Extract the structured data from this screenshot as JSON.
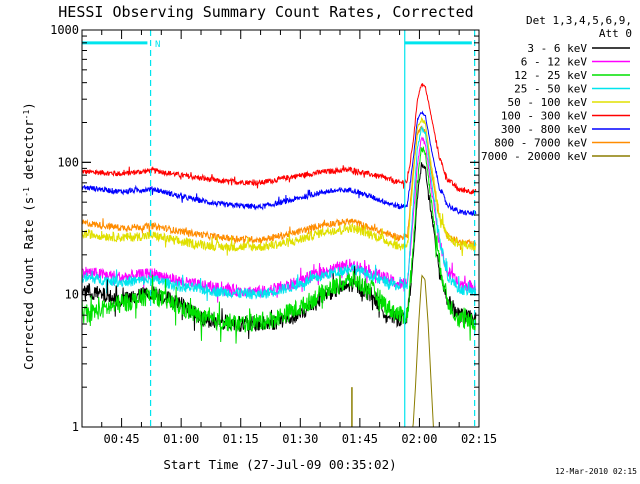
{
  "chart_data": {
    "type": "line",
    "title": "HESSI Observing Summary Count Rates, Corrected",
    "xlabel": "Start Time (27-Jul-09 00:35:02)",
    "ylabel": "Corrected Count Rate (s-1 detector-1)",
    "ylabel_parts": {
      "prefix": "Corrected Count Rate (s",
      "exp1": "-1",
      "mid": " detector",
      "exp2": "-1",
      "suffix": ")"
    },
    "y_scale": "log",
    "ylim": [
      1,
      1000
    ],
    "xlim_minutes": [
      35.03,
      135
    ],
    "x_ticks": [
      {
        "t": 45,
        "label": "00:45"
      },
      {
        "t": 60,
        "label": "01:00"
      },
      {
        "t": 75,
        "label": "01:15"
      },
      {
        "t": 90,
        "label": "01:30"
      },
      {
        "t": 105,
        "label": "01:45"
      },
      {
        "t": 120,
        "label": "02:00"
      },
      {
        "t": 135,
        "label": "02:15"
      }
    ],
    "y_ticks": [
      {
        "v": 1,
        "label": "1"
      },
      {
        "v": 10,
        "label": "10"
      },
      {
        "v": 100,
        "label": "100"
      },
      {
        "v": 1000,
        "label": "1000"
      }
    ],
    "legend_header": [
      "Det 1,3,4,5,6,9,",
      "Att 0"
    ],
    "legend_position": "right",
    "footer_date": "12-Mar-2010 02:15",
    "markers": {
      "color": "#00e5ee",
      "solid_vlines_min": [
        116.3
      ],
      "dashed_vlines_min": [
        52.3,
        133.9
      ],
      "bars": [
        {
          "x0_min": 35.03,
          "x1_min": 51.5,
          "y_value": 800
        },
        {
          "x0_min": 116.3,
          "x1_min": 133.2,
          "y_value": 800
        }
      ],
      "label": "N",
      "label_min": 53.4,
      "label_value": 800
    },
    "series": [
      {
        "name": "3 - 6 keV",
        "color": "#000000",
        "noise": 0.06,
        "trace_order": 8,
        "values": [
          [
            35,
            11
          ],
          [
            45,
            9
          ],
          [
            53,
            10.5
          ],
          [
            60,
            8.5
          ],
          [
            66,
            6.5
          ],
          [
            75,
            6
          ],
          [
            82,
            6
          ],
          [
            90,
            7
          ],
          [
            96,
            10
          ],
          [
            103,
            12
          ],
          [
            108,
            10
          ],
          [
            112,
            7
          ],
          [
            115,
            6.5
          ],
          [
            117,
            7
          ],
          [
            118.5,
            20
          ],
          [
            119.5,
            55
          ],
          [
            120.5,
            95
          ],
          [
            121.5,
            90
          ],
          [
            123,
            40
          ],
          [
            125,
            16
          ],
          [
            127,
            9
          ],
          [
            130,
            7
          ],
          [
            134,
            6.5
          ]
        ]
      },
      {
        "name": "6 - 12 keV",
        "color": "#ff00ff",
        "noise": 0.045,
        "trace_order": 5,
        "values": [
          [
            35,
            15
          ],
          [
            45,
            13.5
          ],
          [
            53,
            14.5
          ],
          [
            60,
            12.5
          ],
          [
            70,
            11
          ],
          [
            80,
            10.5
          ],
          [
            88,
            12
          ],
          [
            96,
            15
          ],
          [
            103,
            17
          ],
          [
            110,
            14
          ],
          [
            115,
            12
          ],
          [
            117,
            12.5
          ],
          [
            118.5,
            40
          ],
          [
            119.5,
            100
          ],
          [
            120.5,
            150
          ],
          [
            121.5,
            140
          ],
          [
            123,
            65
          ],
          [
            125,
            25
          ],
          [
            127,
            15
          ],
          [
            130,
            12
          ],
          [
            134,
            11.5
          ]
        ]
      },
      {
        "name": "12 - 25 keV",
        "color": "#00e000",
        "noise": 0.07,
        "trace_order": 9,
        "values": [
          [
            35,
            7
          ],
          [
            45,
            8.5
          ],
          [
            53,
            10
          ],
          [
            60,
            8
          ],
          [
            66,
            6.5
          ],
          [
            75,
            6
          ],
          [
            83,
            6.5
          ],
          [
            90,
            8
          ],
          [
            97,
            11
          ],
          [
            103,
            13
          ],
          [
            108,
            11
          ],
          [
            112,
            8
          ],
          [
            115,
            7
          ],
          [
            117,
            7
          ],
          [
            118.5,
            25
          ],
          [
            119.5,
            70
          ],
          [
            120.5,
            130
          ],
          [
            121.5,
            120
          ],
          [
            123,
            50
          ],
          [
            125,
            18
          ],
          [
            127,
            9
          ],
          [
            130,
            6.5
          ],
          [
            134,
            6
          ]
        ]
      },
      {
        "name": "25 - 50 keV",
        "color": "#00e5ee",
        "noise": 0.04,
        "trace_order": 6,
        "values": [
          [
            35,
            13.5
          ],
          [
            45,
            12.5
          ],
          [
            53,
            13
          ],
          [
            60,
            11.5
          ],
          [
            70,
            10.5
          ],
          [
            80,
            10
          ],
          [
            88,
            11.5
          ],
          [
            96,
            14
          ],
          [
            103,
            16
          ],
          [
            110,
            13
          ],
          [
            115,
            11.5
          ],
          [
            117,
            12
          ],
          [
            118.5,
            50
          ],
          [
            119.5,
            130
          ],
          [
            120.5,
            180
          ],
          [
            121.5,
            170
          ],
          [
            123,
            75
          ],
          [
            125,
            27
          ],
          [
            127,
            14
          ],
          [
            130,
            11
          ],
          [
            134,
            10.5
          ]
        ]
      },
      {
        "name": "50 - 100 keV",
        "color": "#e0e000",
        "noise": 0.035,
        "trace_order": 4,
        "values": [
          [
            35,
            29
          ],
          [
            45,
            27
          ],
          [
            53,
            28
          ],
          [
            60,
            25
          ],
          [
            70,
            23
          ],
          [
            80,
            23
          ],
          [
            88,
            25
          ],
          [
            96,
            30
          ],
          [
            103,
            32
          ],
          [
            110,
            27
          ],
          [
            115,
            23
          ],
          [
            117,
            24
          ],
          [
            118.5,
            80
          ],
          [
            119.5,
            180
          ],
          [
            120.5,
            210
          ],
          [
            121.5,
            195
          ],
          [
            123,
            95
          ],
          [
            125,
            40
          ],
          [
            127,
            27
          ],
          [
            130,
            24
          ],
          [
            134,
            23
          ]
        ]
      },
      {
        "name": "100 - 300 keV",
        "color": "#ff0000",
        "noise": 0.02,
        "trace_order": 1,
        "values": [
          [
            35,
            85
          ],
          [
            45,
            82
          ],
          [
            53,
            87
          ],
          [
            60,
            80
          ],
          [
            70,
            72
          ],
          [
            80,
            70
          ],
          [
            88,
            78
          ],
          [
            96,
            85
          ],
          [
            103,
            88
          ],
          [
            110,
            78
          ],
          [
            115,
            70
          ],
          [
            117,
            72
          ],
          [
            118.5,
            150
          ],
          [
            119.5,
            300
          ],
          [
            120.5,
            390
          ],
          [
            121.5,
            370
          ],
          [
            123,
            220
          ],
          [
            125,
            110
          ],
          [
            127,
            75
          ],
          [
            130,
            62
          ],
          [
            134,
            60
          ]
        ]
      },
      {
        "name": "300 - 800 keV",
        "color": "#0000ff",
        "noise": 0.02,
        "trace_order": 2,
        "values": [
          [
            35,
            65
          ],
          [
            45,
            60
          ],
          [
            53,
            63
          ],
          [
            60,
            55
          ],
          [
            70,
            48
          ],
          [
            80,
            46
          ],
          [
            88,
            52
          ],
          [
            96,
            60
          ],
          [
            103,
            62
          ],
          [
            110,
            52
          ],
          [
            115,
            46
          ],
          [
            117,
            48
          ],
          [
            118.5,
            110
          ],
          [
            119.5,
            210
          ],
          [
            120.5,
            240
          ],
          [
            121.5,
            225
          ],
          [
            123,
            125
          ],
          [
            125,
            65
          ],
          [
            127,
            48
          ],
          [
            130,
            42
          ],
          [
            134,
            41
          ]
        ]
      },
      {
        "name": "800 - 7000 keV",
        "color": "#ff8c00",
        "noise": 0.025,
        "trace_order": 3,
        "values": [
          [
            35,
            35
          ],
          [
            45,
            32
          ],
          [
            53,
            33
          ],
          [
            60,
            30
          ],
          [
            70,
            27
          ],
          [
            80,
            26
          ],
          [
            88,
            29
          ],
          [
            96,
            34
          ],
          [
            103,
            36
          ],
          [
            110,
            30
          ],
          [
            115,
            27
          ],
          [
            117,
            28
          ],
          [
            118.5,
            90
          ],
          [
            119.5,
            165
          ],
          [
            120.5,
            185
          ],
          [
            121.5,
            170
          ],
          [
            123,
            85
          ],
          [
            125,
            38
          ],
          [
            127,
            28
          ],
          [
            130,
            25
          ],
          [
            134,
            24
          ]
        ]
      },
      {
        "name": "7000 - 20000 keV",
        "color": "#8b7d00",
        "noise": 0,
        "trace_order": 7,
        "values": [
          [
            116,
            0.9
          ],
          [
            118.3,
            0.9
          ],
          [
            119,
            2
          ],
          [
            119.8,
            6
          ],
          [
            120.6,
            14
          ],
          [
            121.4,
            13
          ],
          [
            122.2,
            6
          ],
          [
            123,
            2
          ],
          [
            123.6,
            0.9
          ],
          [
            134,
            0.9
          ]
        ],
        "spikes": [
          [
            103,
            2
          ]
        ]
      }
    ]
  }
}
